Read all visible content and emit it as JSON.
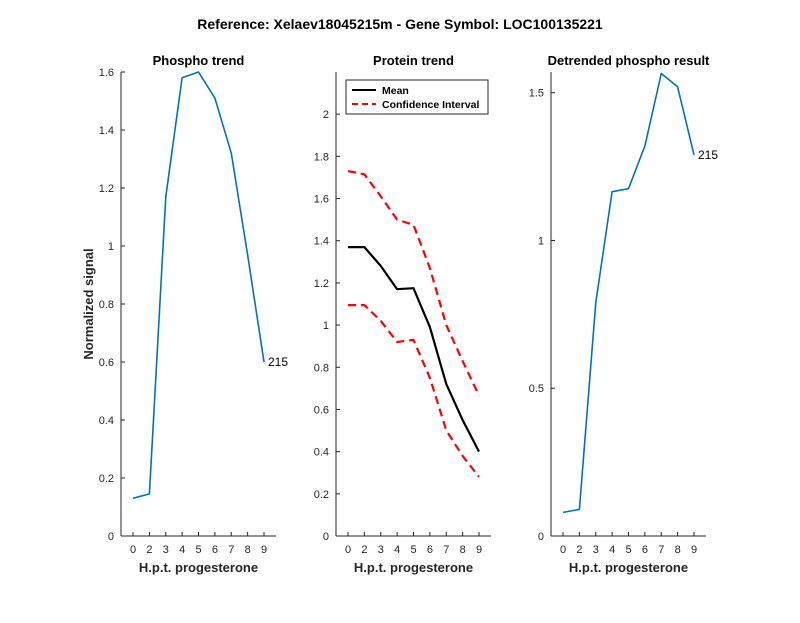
{
  "figure": {
    "suptitle": "Reference:  Xelaev18045215m - Gene Symbol:  LOC100135221"
  },
  "chart_data": [
    {
      "type": "line",
      "title": "Phospho trend",
      "xlabel": "H.p.t. progesterone",
      "ylabel": "Normalized signal",
      "x_ticks": [
        "0",
        "2",
        "3",
        "4",
        "5",
        "6",
        "7",
        "8",
        "9"
      ],
      "y_ticks": [
        "0",
        "0.2",
        "0.4",
        "0.6",
        "0.8",
        "1",
        "1.2",
        "1.4",
        "1.6"
      ],
      "ylim": [
        0,
        1.6
      ],
      "series": [
        {
          "color": "#0072BD",
          "style": "solid",
          "values": [
            0.13,
            0.145,
            1.17,
            1.58,
            1.6,
            1.51,
            1.32,
            0.97,
            0.6
          ]
        }
      ],
      "end_label": "215"
    },
    {
      "type": "line",
      "title": "Protein trend",
      "xlabel": "H.p.t. progesterone",
      "ylabel": "",
      "x_ticks": [
        "0",
        "2",
        "3",
        "4",
        "5",
        "6",
        "7",
        "8",
        "9"
      ],
      "y_ticks": [
        "0",
        "0.2",
        "0.4",
        "0.6",
        "0.8",
        "1",
        "1.2",
        "1.4",
        "1.6",
        "1.8",
        "2"
      ],
      "ylim": [
        0,
        2.2
      ],
      "legend": {
        "placement": "top-left",
        "entries": [
          "Mean",
          "Confidence Interval"
        ]
      },
      "series": [
        {
          "name": "Mean",
          "color": "#000000",
          "style": "solid",
          "values": [
            1.37,
            1.37,
            1.28,
            1.17,
            1.175,
            0.99,
            0.72,
            0.55,
            0.4
          ]
        },
        {
          "name": "Confidence Interval",
          "color": "#FF0000",
          "style": "dashed",
          "values": [
            1.73,
            1.715,
            1.61,
            1.5,
            1.475,
            1.27,
            1.0,
            0.83,
            0.665
          ]
        },
        {
          "name": "Confidence Interval",
          "color": "#FF0000",
          "style": "dashed",
          "values": [
            1.095,
            1.095,
            1.02,
            0.92,
            0.93,
            0.75,
            0.5,
            0.38,
            0.28
          ]
        }
      ]
    },
    {
      "type": "line",
      "title": "Detrended phospho result",
      "xlabel": "H.p.t. progesterone",
      "ylabel": "",
      "x_ticks": [
        "0",
        "2",
        "3",
        "4",
        "5",
        "6",
        "7",
        "8",
        "9"
      ],
      "y_ticks": [
        "0",
        "0.5",
        "1",
        "1.5"
      ],
      "ylim": [
        0,
        1.57
      ],
      "series": [
        {
          "color": "#0072BD",
          "style": "solid",
          "values": [
            0.08,
            0.09,
            0.79,
            1.165,
            1.175,
            1.32,
            1.565,
            1.52,
            1.29
          ]
        }
      ],
      "end_label": "215"
    }
  ]
}
